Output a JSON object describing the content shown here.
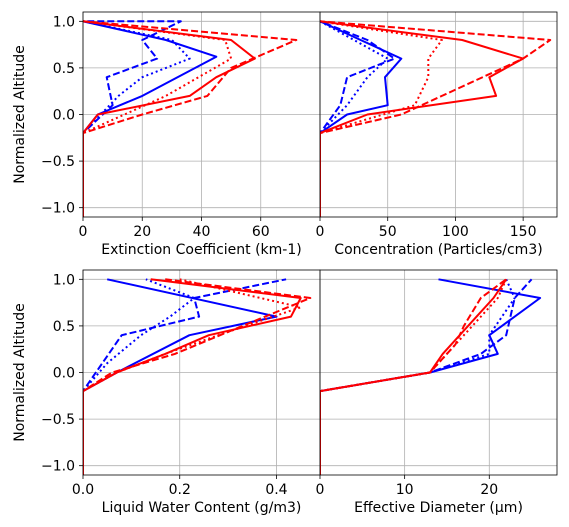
{
  "chart_data": [
    {
      "type": "line",
      "xlabel": "Extinction Coefficient (km-1)",
      "ylabel": "Normalized Altitude",
      "xlim": [
        0,
        80
      ],
      "ylim": [
        -1.1,
        1.1
      ],
      "xticks": [
        "0",
        "20",
        "40",
        "60"
      ],
      "xtick_values": [
        0,
        20,
        40,
        60
      ],
      "yticks": [
        "−1.0",
        "−0.5",
        "0.0",
        "0.5",
        "1.0"
      ],
      "ytick_values": [
        -1.0,
        -0.5,
        0.0,
        0.5,
        1.0
      ],
      "grid": true,
      "series": [
        {
          "color": "#0000ff",
          "style": "solid",
          "x": [
            0,
            0,
            0,
            0,
            5,
            20,
            45,
            28,
            0
          ],
          "y": [
            -1.1,
            -0.6,
            -0.4,
            -0.2,
            0.0,
            0.2,
            0.62,
            0.8,
            1.0
          ]
        },
        {
          "color": "#0000ff",
          "style": "dotted",
          "x": [
            0,
            0,
            0,
            0,
            12,
            20,
            36,
            30,
            0
          ],
          "y": [
            -1.1,
            -0.6,
            -0.4,
            -0.2,
            0.2,
            0.4,
            0.6,
            0.8,
            1.0
          ]
        },
        {
          "color": "#0000ff",
          "style": "dashed",
          "x": [
            0,
            0,
            0,
            0,
            10,
            8,
            25,
            20,
            33,
            0
          ],
          "y": [
            -1.1,
            -0.6,
            -0.4,
            -0.2,
            0.1,
            0.4,
            0.6,
            0.8,
            1.0,
            1.0
          ]
        },
        {
          "color": "#ff0000",
          "style": "solid",
          "x": [
            0,
            0,
            0,
            0,
            5,
            36,
            45,
            58,
            50,
            0
          ],
          "y": [
            -1.1,
            -0.6,
            -0.4,
            -0.2,
            0.0,
            0.2,
            0.4,
            0.6,
            0.8,
            1.0
          ]
        },
        {
          "color": "#ff0000",
          "style": "dotted",
          "x": [
            0,
            0,
            0,
            0,
            28,
            50,
            48,
            0
          ],
          "y": [
            -1.1,
            -0.6,
            -0.4,
            -0.2,
            0.2,
            0.6,
            0.8,
            1.0
          ]
        },
        {
          "color": "#ff0000",
          "style": "dashed",
          "x": [
            0,
            0,
            0,
            0,
            20,
            42,
            50,
            72,
            0
          ],
          "y": [
            -1.1,
            -0.6,
            -0.4,
            -0.2,
            0.0,
            0.2,
            0.5,
            0.8,
            1.0
          ]
        }
      ]
    },
    {
      "type": "line",
      "xlabel": "Concentration (Particles/cm3)",
      "ylabel": "",
      "xlim": [
        0,
        175
      ],
      "ylim": [
        -1.1,
        1.1
      ],
      "xticks": [
        "0",
        "50",
        "100",
        "150"
      ],
      "xtick_values": [
        0,
        50,
        100,
        150
      ],
      "yticks": [],
      "ytick_values": [],
      "grid": true,
      "series": [
        {
          "color": "#0000ff",
          "style": "solid",
          "x": [
            0,
            0,
            0,
            0,
            20,
            50,
            48,
            60,
            30,
            0
          ],
          "y": [
            -1.1,
            -0.6,
            -0.4,
            -0.2,
            0.0,
            0.1,
            0.4,
            0.6,
            0.8,
            1.0
          ]
        },
        {
          "color": "#0000ff",
          "style": "dotted",
          "x": [
            0,
            0,
            0,
            0,
            20,
            35,
            50,
            25,
            0
          ],
          "y": [
            -1.1,
            -0.6,
            -0.4,
            -0.2,
            0.1,
            0.4,
            0.6,
            0.8,
            1.0
          ]
        },
        {
          "color": "#0000ff",
          "style": "dashed",
          "x": [
            0,
            0,
            0,
            0,
            15,
            20,
            55,
            35,
            0
          ],
          "y": [
            -1.1,
            -0.6,
            -0.4,
            -0.2,
            0.1,
            0.4,
            0.6,
            0.8,
            1.0
          ]
        },
        {
          "color": "#ff0000",
          "style": "solid",
          "x": [
            0,
            0,
            0,
            0,
            35,
            130,
            125,
            150,
            105,
            0
          ],
          "y": [
            -1.1,
            -0.6,
            -0.4,
            -0.2,
            0.0,
            0.2,
            0.4,
            0.6,
            0.8,
            1.0
          ]
        },
        {
          "color": "#ff0000",
          "style": "dotted",
          "x": [
            0,
            0,
            0,
            0,
            70,
            80,
            80,
            90,
            0
          ],
          "y": [
            -1.1,
            -0.6,
            -0.4,
            -0.2,
            0.1,
            0.4,
            0.6,
            0.8,
            1.0
          ]
        },
        {
          "color": "#ff0000",
          "style": "dashed",
          "x": [
            0,
            0,
            0,
            0,
            60,
            90,
            150,
            170,
            0
          ],
          "y": [
            -1.1,
            -0.6,
            -0.4,
            -0.2,
            0.0,
            0.2,
            0.6,
            0.8,
            1.0
          ]
        }
      ]
    },
    {
      "type": "line",
      "xlabel": "Liquid Water Content (g/m3)",
      "ylabel": "Normalized Altitude",
      "xlim": [
        0,
        0.49
      ],
      "ylim": [
        -1.1,
        1.1
      ],
      "xticks": [
        "0.0",
        "0.2",
        "0.4"
      ],
      "xtick_values": [
        0.0,
        0.2,
        0.4
      ],
      "yticks": [
        "−1.0",
        "−0.5",
        "0.0",
        "0.5",
        "1.0"
      ],
      "ytick_values": [
        -1.0,
        -0.5,
        0.0,
        0.5,
        1.0
      ],
      "grid": true,
      "series": [
        {
          "color": "#0000ff",
          "style": "solid",
          "x": [
            0,
            0,
            0,
            0,
            0.07,
            0.22,
            0.4,
            0.05
          ],
          "y": [
            -1.1,
            -0.6,
            -0.4,
            -0.2,
            0.0,
            0.4,
            0.6,
            1.0
          ]
        },
        {
          "color": "#0000ff",
          "style": "dotted",
          "x": [
            0,
            0,
            0,
            0,
            0.05,
            0.12,
            0.18,
            0.23,
            0.13
          ],
          "y": [
            -1.1,
            -0.6,
            -0.4,
            -0.2,
            0.1,
            0.4,
            0.6,
            0.8,
            1.0
          ]
        },
        {
          "color": "#0000ff",
          "style": "dashed",
          "x": [
            0,
            0,
            0,
            0,
            0.04,
            0.08,
            0.24,
            0.23,
            0.42
          ],
          "y": [
            -1.1,
            -0.6,
            -0.4,
            -0.2,
            0.1,
            0.4,
            0.6,
            0.8,
            1.0
          ]
        },
        {
          "color": "#ff0000",
          "style": "solid",
          "x": [
            0,
            0,
            0,
            0,
            0.07,
            0.17,
            0.26,
            0.43,
            0.45,
            0.14
          ],
          "y": [
            -1.1,
            -0.6,
            -0.4,
            -0.2,
            0.0,
            0.2,
            0.4,
            0.6,
            0.8,
            1.0
          ]
        },
        {
          "color": "#ff0000",
          "style": "dotted",
          "x": [
            0,
            0,
            0,
            0,
            0.07,
            0.17,
            0.28,
            0.45,
            0.2
          ],
          "y": [
            -1.1,
            -0.6,
            -0.4,
            -0.2,
            0.0,
            0.2,
            0.4,
            0.7,
            1.0
          ]
        },
        {
          "color": "#ff0000",
          "style": "dashed",
          "x": [
            0,
            0,
            0,
            0,
            0.06,
            0.19,
            0.33,
            0.47,
            0.17
          ],
          "y": [
            -1.1,
            -0.6,
            -0.4,
            -0.2,
            0.0,
            0.2,
            0.5,
            0.8,
            1.0
          ]
        }
      ]
    },
    {
      "type": "line",
      "xlabel": "Effective Diameter (µm)",
      "ylabel": "",
      "xlim": [
        0,
        28
      ],
      "ylim": [
        -1.1,
        1.1
      ],
      "xticks": [
        "0",
        "10",
        "20"
      ],
      "xtick_values": [
        0,
        10,
        20
      ],
      "yticks": [],
      "ytick_values": [],
      "grid": true,
      "series": [
        {
          "color": "#0000ff",
          "style": "solid",
          "x": [
            0,
            0,
            0,
            0,
            13,
            21,
            20,
            26,
            14
          ],
          "y": [
            -1.1,
            -0.6,
            -0.4,
            -0.2,
            0.0,
            0.2,
            0.4,
            0.8,
            1.0
          ]
        },
        {
          "color": "#0000ff",
          "style": "dotted",
          "x": [
            0,
            0,
            0,
            0,
            13,
            20,
            20,
            23,
            22
          ],
          "y": [
            -1.1,
            -0.6,
            -0.4,
            -0.2,
            0.0,
            0.2,
            0.4,
            0.8,
            1.0
          ]
        },
        {
          "color": "#0000ff",
          "style": "dashed",
          "x": [
            0,
            0,
            0,
            0,
            13,
            19,
            22,
            23,
            25
          ],
          "y": [
            -1.1,
            -0.6,
            -0.4,
            -0.2,
            0.0,
            0.2,
            0.4,
            0.8,
            1.0
          ]
        },
        {
          "color": "#ff0000",
          "style": "solid",
          "x": [
            0,
            0,
            0,
            0,
            13,
            14.5,
            16.5,
            18.5,
            20.5,
            22
          ],
          "y": [
            -1.1,
            -0.6,
            -0.4,
            -0.2,
            0.0,
            0.2,
            0.4,
            0.6,
            0.8,
            1.0
          ]
        },
        {
          "color": "#ff0000",
          "style": "dotted",
          "x": [
            0,
            0,
            0,
            0,
            13,
            16,
            18,
            21,
            22
          ],
          "y": [
            -1.1,
            -0.6,
            -0.4,
            -0.2,
            0.0,
            0.3,
            0.5,
            0.8,
            1.0
          ]
        },
        {
          "color": "#ff0000",
          "style": "dashed",
          "x": [
            0,
            0,
            0,
            0,
            13,
            16,
            17,
            19,
            22
          ],
          "y": [
            -1.1,
            -0.6,
            -0.4,
            -0.2,
            0.0,
            0.3,
            0.5,
            0.8,
            1.0
          ]
        }
      ]
    }
  ]
}
